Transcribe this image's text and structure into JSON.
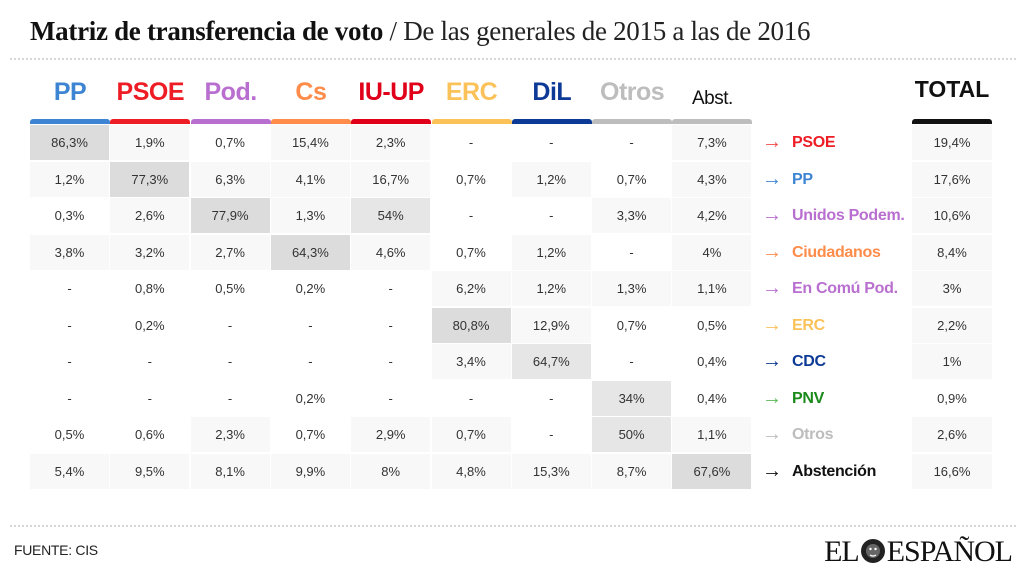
{
  "header": {
    "title_main": "Matriz de transferencia de voto",
    "title_sep": "/",
    "title_sub": "De las generales de 2015 a las de 2016"
  },
  "chart_data": {
    "type": "table",
    "title": "Matriz de transferencia de voto / De las generales de 2015 a las de 2016",
    "columns": [
      {
        "label": "PP",
        "color": "#3d85d3"
      },
      {
        "label": "PSOE",
        "color": "#ee1c25"
      },
      {
        "label": "Pod.",
        "color": "#b86fcf"
      },
      {
        "label": "Cs",
        "color": "#ff8c4a"
      },
      {
        "label": "IU-UP",
        "color": "#e0001a"
      },
      {
        "label": "ERC",
        "color": "#fbc25a"
      },
      {
        "label": "DiL",
        "color": "#0d3a96"
      },
      {
        "label": "Otros",
        "color": "#bdbdbd"
      },
      {
        "label": "Abst.",
        "color": "#bdbdbd"
      }
    ],
    "total_label": "TOTAL",
    "rows": [
      {
        "label": "PSOE",
        "color": "#ee1c25",
        "arrow_color": "#f24a4a",
        "cells": [
          "86,3%",
          "1,9%",
          "0,7%",
          "15,4%",
          "2,3%",
          "-",
          "-",
          "-",
          "7,3%"
        ],
        "shades": [
          3,
          1,
          0,
          1,
          1,
          0,
          0,
          0,
          1
        ],
        "total": "19,4%",
        "total_shade": 1
      },
      {
        "label": "PP",
        "color": "#3d85d3",
        "arrow_color": "#3d85d3",
        "cells": [
          "1,2%",
          "77,3%",
          "6,3%",
          "4,1%",
          "16,7%",
          "0,7%",
          "1,2%",
          "0,7%",
          "4,3%"
        ],
        "shades": [
          1,
          3,
          1,
          1,
          1,
          0,
          1,
          0,
          1
        ],
        "total": "17,6%",
        "total_shade": 1
      },
      {
        "label": "Unidos Podem.",
        "color": "#b86fcf",
        "arrow_color": "#b86fcf",
        "cells": [
          "0,3%",
          "2,6%",
          "77,9%",
          "1,3%",
          "54%",
          "-",
          "-",
          "3,3%",
          "4,2%"
        ],
        "shades": [
          0,
          1,
          3,
          1,
          2,
          0,
          0,
          1,
          1
        ],
        "total": "10,6%",
        "total_shade": 1
      },
      {
        "label": "Ciudadanos",
        "color": "#ff8c4a",
        "arrow_color": "#ff8c4a",
        "cells": [
          "3,8%",
          "3,2%",
          "2,7%",
          "64,3%",
          "4,6%",
          "0,7%",
          "1,2%",
          "-",
          "4%"
        ],
        "shades": [
          1,
          1,
          1,
          3,
          1,
          0,
          1,
          0,
          1
        ],
        "total": "8,4%",
        "total_shade": 1
      },
      {
        "label": "En Comú Pod.",
        "color": "#b86fcf",
        "arrow_color": "#b86fcf",
        "cells": [
          "-",
          "0,8%",
          "0,5%",
          "0,2%",
          "-",
          "6,2%",
          "1,2%",
          "1,3%",
          "1,1%"
        ],
        "shades": [
          0,
          0,
          0,
          0,
          0,
          1,
          1,
          1,
          1
        ],
        "total": "3%",
        "total_shade": 1
      },
      {
        "label": "ERC",
        "color": "#fbc25a",
        "arrow_color": "#fbc25a",
        "cells": [
          "-",
          "0,2%",
          "-",
          "-",
          "-",
          "80,8%",
          "12,9%",
          "0,7%",
          "0,5%"
        ],
        "shades": [
          0,
          0,
          0,
          0,
          0,
          3,
          1,
          0,
          0
        ],
        "total": "2,2%",
        "total_shade": 1
      },
      {
        "label": "CDC",
        "color": "#0d3a96",
        "arrow_color": "#0d3a96",
        "cells": [
          "-",
          "-",
          "-",
          "-",
          "-",
          "3,4%",
          "64,7%",
          "-",
          "0,4%"
        ],
        "shades": [
          0,
          0,
          0,
          0,
          0,
          1,
          2,
          0,
          0
        ],
        "total": "1%",
        "total_shade": 1
      },
      {
        "label": "PNV",
        "color": "#1a8a1a",
        "arrow_color": "#5cb85c",
        "cells": [
          "-",
          "-",
          "-",
          "0,2%",
          "-",
          "-",
          "-",
          "34%",
          "0,4%"
        ],
        "shades": [
          0,
          0,
          0,
          0,
          0,
          0,
          0,
          2,
          0
        ],
        "total": "0,9%",
        "total_shade": 0
      },
      {
        "label": "Otros",
        "color": "#bdbdbd",
        "arrow_color": "#bdbdbd",
        "cells": [
          "0,5%",
          "0,6%",
          "2,3%",
          "0,7%",
          "2,9%",
          "0,7%",
          "-",
          "50%",
          "1,1%"
        ],
        "shades": [
          0,
          0,
          1,
          0,
          1,
          1,
          0,
          2,
          1
        ],
        "total": "2,6%",
        "total_shade": 1
      },
      {
        "label": "Abstención",
        "color": "#111111",
        "arrow_color": "#111111",
        "cells": [
          "5,4%",
          "9,5%",
          "8,1%",
          "9,9%",
          "8%",
          "4,8%",
          "15,3%",
          "8,7%",
          "67,6%"
        ],
        "shades": [
          1,
          1,
          1,
          1,
          1,
          1,
          1,
          1,
          3
        ],
        "total": "16,6%",
        "total_shade": 1
      }
    ],
    "arrow_glyph": "→"
  },
  "footer": {
    "source": "FUENTE: CIS",
    "logo_left": "EL",
    "logo_right": "ESPAÑOL"
  }
}
